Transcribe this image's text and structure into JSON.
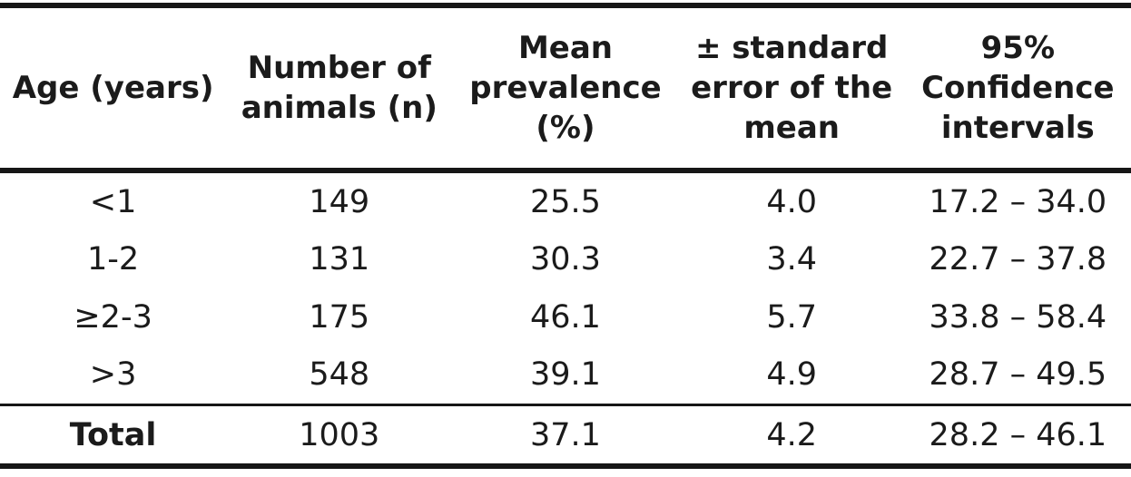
{
  "table": {
    "columns": [
      "Age (years)",
      "Number of\nanimals (n)",
      "Mean\nprevalence\n(%)",
      "± standard\nerror of the\nmean",
      "95%\nConfidence\nintervals"
    ],
    "rows": [
      [
        "<1",
        "149",
        "25.5",
        "4.0",
        "17.2 – 34.0"
      ],
      [
        "1-2",
        "131",
        "30.3",
        "3.4",
        "22.7 – 37.8"
      ],
      [
        "≥2-3",
        "175",
        "46.1",
        "5.7",
        "33.8 – 58.4"
      ],
      [
        ">3",
        "548",
        "39.1",
        "4.9",
        "28.7 – 49.5"
      ]
    ],
    "total": [
      "Total",
      "1003",
      "37.1",
      "4.2",
      "28.2 – 46.1"
    ]
  },
  "colors": {
    "text": "#1b1b1b",
    "rule": "#161616",
    "background": "#ffffff"
  }
}
